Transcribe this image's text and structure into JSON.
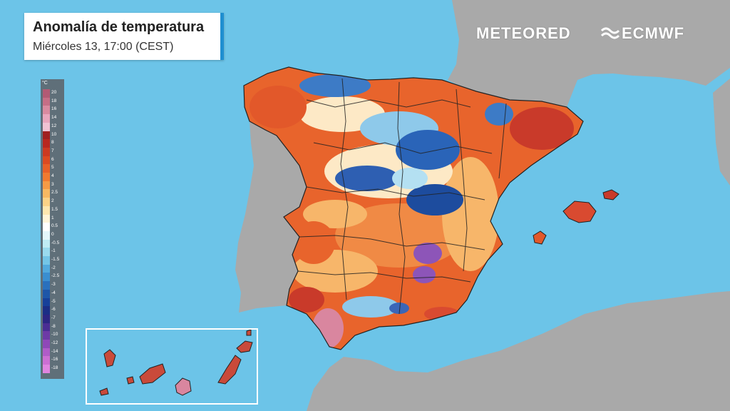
{
  "title": "Anomalía de temperatura",
  "subtitle": "Miércoles 13, 17:00 (CEST)",
  "brands": {
    "meteored": "METEORED",
    "ecmwf": "ECMWF"
  },
  "icons": {
    "ecmwf_logo": "ecmwf-wave-icon"
  },
  "legend": {
    "unit": "°C",
    "levels": [
      "20",
      "18",
      "16",
      "14",
      "12",
      "10",
      "8",
      "7",
      "6",
      "5",
      "4",
      "3",
      "2.5",
      "2",
      "1.5",
      "1",
      "0.5",
      "0",
      "-0.5",
      "-1",
      "-1.5",
      "-2",
      "-2.5",
      "-3",
      "-4",
      "-5",
      "-6",
      "-7",
      "-8",
      "-10",
      "-12",
      "-14",
      "-16",
      "-18"
    ],
    "colors": [
      "#b25a74",
      "#c66e86",
      "#d98aa0",
      "#e8a6bd",
      "#f0c2d3",
      "#a02020",
      "#b8281f",
      "#cc3a22",
      "#dc4a22",
      "#e86028",
      "#f07a30",
      "#f59a45",
      "#f8b862",
      "#fbd287",
      "#fde7b0",
      "#fff4d8",
      "#ffffff",
      "#e4f6fb",
      "#c0ecf4",
      "#9adbee",
      "#74c6e7",
      "#52aadd",
      "#3a8ed0",
      "#2a70bd",
      "#1e56a8",
      "#17409a",
      "#1b2e86",
      "#2c2683",
      "#4a2d93",
      "#6d3aa6",
      "#8f48b8",
      "#b05cc8",
      "#cc6fd3",
      "#e085e0"
    ]
  },
  "colors": {
    "sea": "#6cc4e8",
    "land_outside": "#a9a9a9",
    "warm": "#e2582a",
    "cool": "#2a6fc0",
    "extreme": "#d9869f"
  }
}
